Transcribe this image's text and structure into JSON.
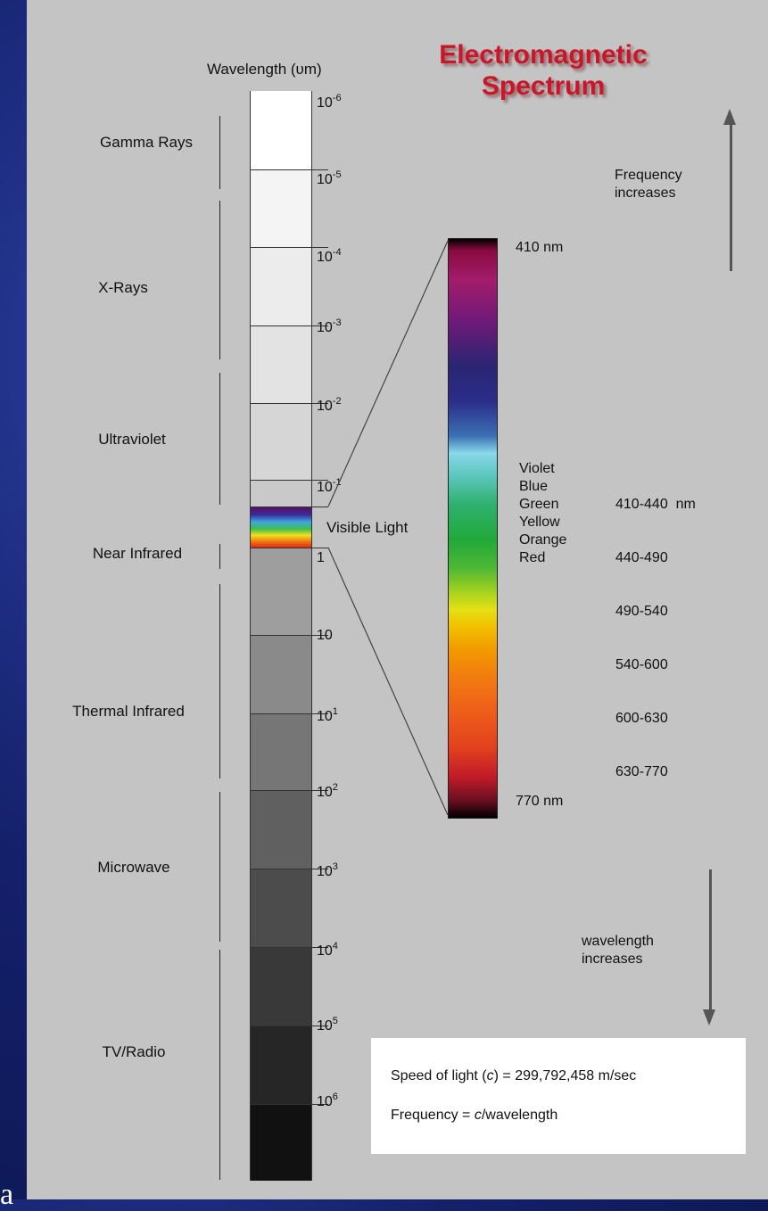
{
  "title_line1": "Electromagnetic",
  "title_line2": "Spectrum",
  "wavelength_header": "Wavelength (υm)",
  "regions": {
    "gamma": "Gamma Rays",
    "xray": "X-Rays",
    "uv": "Ultraviolet",
    "nir": "Near Infrared",
    "thermal": "Thermal Infrared",
    "microwave": "Microwave",
    "radio": "TV/Radio"
  },
  "ticks": {
    "t0_base": "10",
    "t0_exp": "-6",
    "t1_base": "10",
    "t1_exp": "-5",
    "t2_base": "10",
    "t2_exp": "-4",
    "t3_base": "10",
    "t3_exp": "-3",
    "t4_base": "10",
    "t4_exp": "-2",
    "t5_base": "10",
    "t5_exp": "-1",
    "t6": "1",
    "t7": "10",
    "t8_base": "10",
    "t8_exp": "1",
    "t9_base": "10",
    "t9_exp": "2",
    "t10_base": "10",
    "t10_exp": "3",
    "t11_base": "10",
    "t11_exp": "4",
    "t12_base": "10",
    "t12_exp": "5",
    "t13_base": "10",
    "t13_exp": "6"
  },
  "visible_light_label": "Visible Light",
  "spectrum_top_label": "410 nm",
  "spectrum_bottom_label": "770 nm",
  "visible_colors": [
    {
      "name": "Violet",
      "range": "410-440  nm"
    },
    {
      "name": "Blue",
      "range": "440-490"
    },
    {
      "name": "Green",
      "range": "490-540"
    },
    {
      "name": "Yellow",
      "range": "540-600"
    },
    {
      "name": "Orange",
      "range": "600-630"
    },
    {
      "name": "Red",
      "range": "630-770"
    }
  ],
  "freq_line1": "Frequency",
  "freq_line2": "increases",
  "wave_line1": "wavelength",
  "wave_line2": "increases",
  "speed_pre": "Speed of light (",
  "speed_c": "c",
  "speed_post": ") = 299,792,458 m/sec",
  "formula_pre": "Frequency = ",
  "formula_c": "c",
  "formula_post": "/wavelength",
  "clipped_text": "a",
  "colors": {
    "title": "#c8172a",
    "panel": "#c4c4c4",
    "background": "#14206a"
  }
}
